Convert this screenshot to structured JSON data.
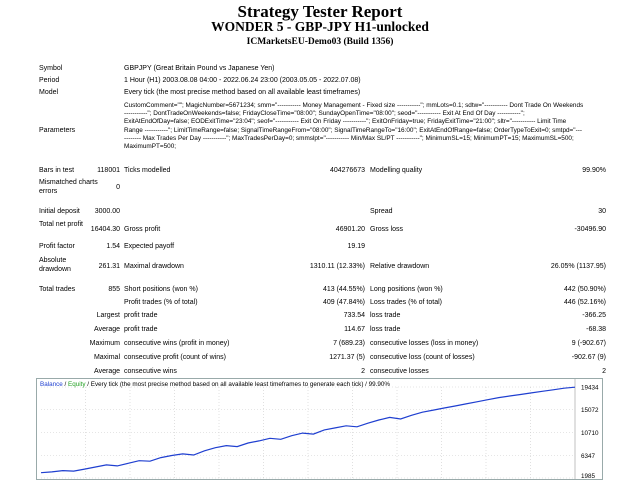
{
  "header": {
    "title": "Strategy Tester Report",
    "subtitle": "WONDER 5 - GBP-JPY H1-unlocked",
    "account": "ICMarketsEU-Demo03 (Build 1356)"
  },
  "info": {
    "symbol_label": "Symbol",
    "symbol": "GBPJPY (Great Britain Pound vs Japanese Yen)",
    "period_label": "Period",
    "period": "1 Hour (H1) 2003.08.08 04:00 - 2022.06.24 23:00 (2003.05.05 - 2022.07.08)",
    "model_label": "Model",
    "model": "Every tick (the most precise method based on all available least timeframes)",
    "params_label": "Parameters",
    "params": "CustomComment=\"\"; MagicNumber=5671234; smm=\"----------- Money Management - Fixed size -----------\"; mmLots=0.1; sdtw=\"----------- Dont Trade On Weekends -----------\"; DontTradeOnWeekends=false; FridayCloseTime=\"08:00\"; SundayOpenTime=\"08:00\"; seod=\"----------- Exit At End Of Day -----------\"; ExitAtEndOfDay=false; EODExitTime=\"23:04\"; seof=\"----------- Exit On Friday -----------\"; ExitOnFriday=true; FridayExitTime=\"21:00\"; sltr=\"----------- Limit Time Range -----------\"; LimitTimeRange=false; SignalTimeRangeFrom=\"08:00\"; SignalTimeRangeTo=\"16:00\"; ExitAtEndOfRange=false; OrderTypeToExit=0; smtpd=\"----------- Max Trades Per Day -----------\"; MaxTradesPerDay=0; smmslpt=\"----------- Min/Max SL/PT -----------\"; MinimumSL=15; MinimumPT=15; MaximumSL=500; MaximumPT=500;"
  },
  "stats": {
    "bars_label": "Bars in test",
    "bars": "118001",
    "ticks_label": "Ticks modelled",
    "ticks": "404276673",
    "quality_label": "Modelling quality",
    "quality": "99.90%",
    "mismatch_label": "Mismatched charts errors",
    "mismatch": "0",
    "deposit_label": "Initial deposit",
    "deposit": "3000.00",
    "spread_label": "Spread",
    "spread": "30",
    "net_label": "Total net profit",
    "net": "16404.30",
    "gross_profit_label": "Gross profit",
    "gross_profit": "46901.20",
    "gross_loss_label": "Gross loss",
    "gross_loss": "-30496.90",
    "pf_label": "Profit factor",
    "pf": "1.54",
    "payoff_label": "Expected payoff",
    "payoff": "19.19",
    "abs_dd_label": "Absolute drawdown",
    "abs_dd": "261.31",
    "max_dd_label": "Maximal drawdown",
    "max_dd": "1310.11 (12.33%)",
    "rel_dd_label": "Relative drawdown",
    "rel_dd": "26.05% (1137.95)",
    "trades_label": "Total trades",
    "trades": "855",
    "short_label": "Short positions (won %)",
    "short": "413 (44.55%)",
    "long_label": "Long positions (won %)",
    "long": "442 (50.90%)",
    "profit_trades_label": "Profit trades (% of total)",
    "profit_trades": "409 (47.84%)",
    "loss_trades_label": "Loss trades (% of total)",
    "loss_trades": "446 (52.16%)",
    "largest_label": "Largest",
    "largest_profit_label": "profit trade",
    "largest_profit": "733.54",
    "largest_loss_label": "loss trade",
    "largest_loss": "-366.25",
    "average_label": "Average",
    "avg_profit_label": "profit trade",
    "avg_profit": "114.67",
    "avg_loss_label": "loss trade",
    "avg_loss": "-68.38",
    "maximum_label": "Maximum",
    "max_cons_wins_label": "consecutive wins (profit in money)",
    "max_cons_wins": "7 (689.23)",
    "max_cons_losses_label": "consecutive losses (loss in money)",
    "max_cons_losses": "9 (-902.67)",
    "maximal_label": "Maximal",
    "maximal_cons_profit_label": "consecutive profit (count of wins)",
    "maximal_cons_profit": "1271.37 (5)",
    "maximal_cons_loss_label": "consecutive loss (count of losses)",
    "maximal_cons_loss": "-902.67 (9)",
    "avg_cons_label": "Average",
    "avg_cons_wins_label": "consecutive wins",
    "avg_cons_wins": "2",
    "avg_cons_losses_label": "consecutive losses",
    "avg_cons_losses": "2"
  },
  "legend": {
    "balance": "Balance",
    "sep": "/",
    "equity": "Equity",
    "text": "/ Every tick (the most precise method based on all available least timeframes to generate each tick) / 99.90%"
  },
  "chart_data": {
    "type": "line",
    "y_ticks": [
      "19434",
      "15072",
      "10710",
      "6347",
      "1985"
    ],
    "ylim": [
      1985,
      19434
    ],
    "series": [
      {
        "name": "Balance",
        "color": "#1f3fd0",
        "values": [
          3000,
          3150,
          3400,
          3300,
          3700,
          4100,
          4500,
          4300,
          4800,
          5300,
          5200,
          5900,
          6300,
          6600,
          6400,
          7200,
          7800,
          8200,
          8000,
          8700,
          9100,
          9600,
          9400,
          10100,
          10600,
          10400,
          11200,
          11600,
          12000,
          11800,
          12500,
          13100,
          13600,
          13300,
          14000,
          14600,
          15000,
          15400,
          15800,
          16200,
          16600,
          17000,
          17400,
          17700,
          18000,
          18300,
          18600,
          18900,
          19200,
          19404
        ]
      }
    ]
  }
}
